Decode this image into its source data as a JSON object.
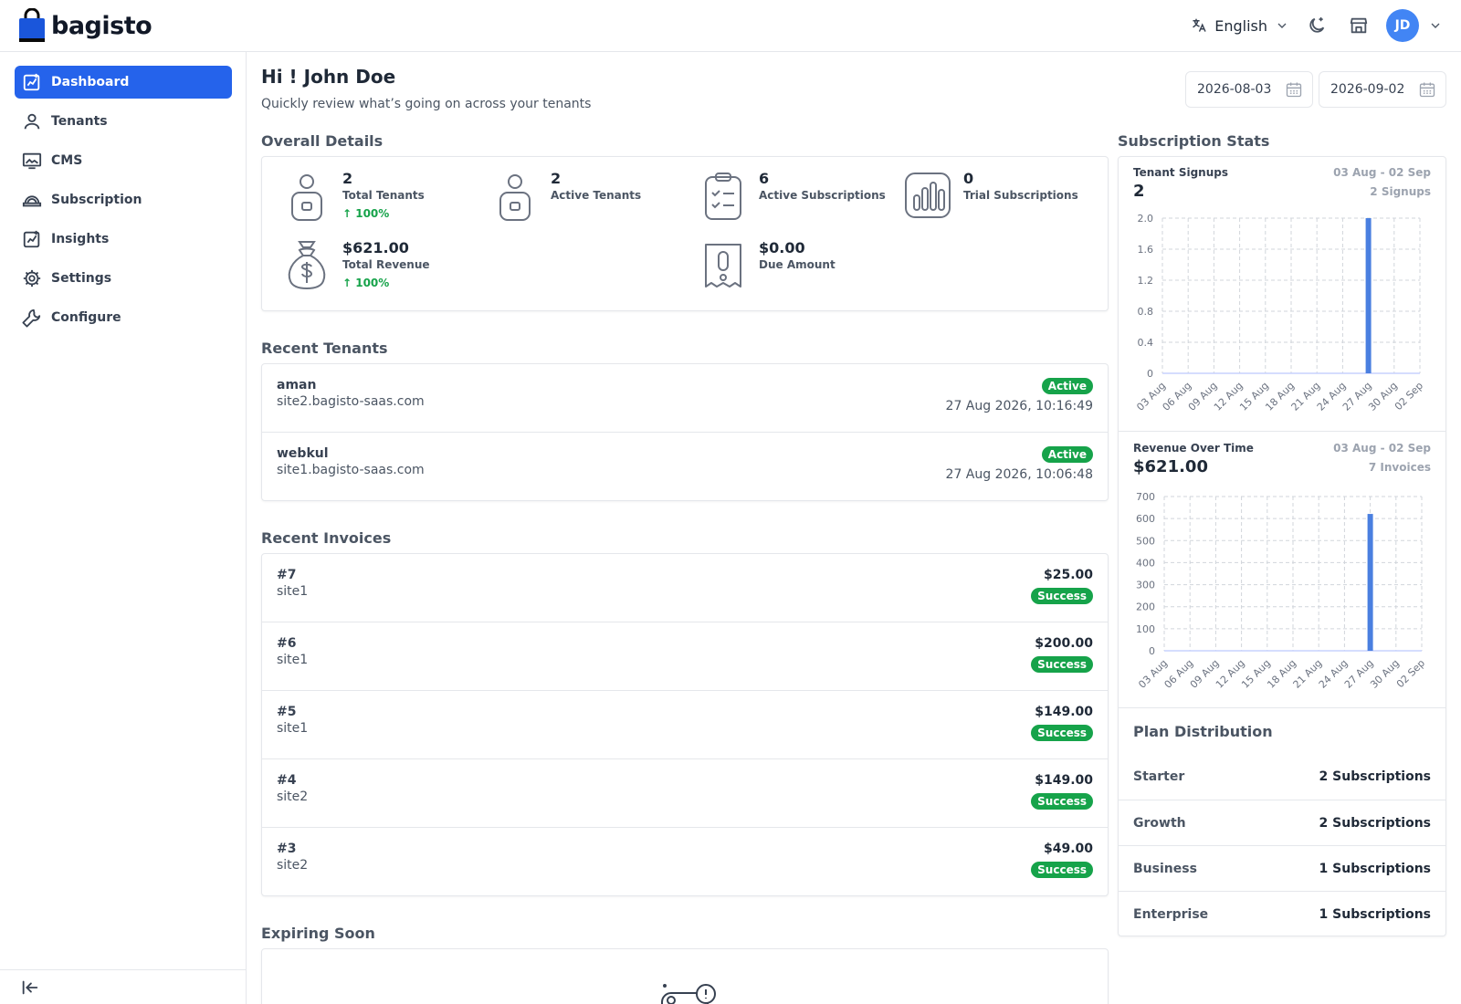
{
  "header": {
    "logo_text": "bagisto",
    "language": "English",
    "avatar_initials": "JD",
    "accent": "#2563eb"
  },
  "sidebar": {
    "items": [
      {
        "label": "Dashboard",
        "icon": "dashboard-icon",
        "active": true
      },
      {
        "label": "Tenants",
        "icon": "user-icon"
      },
      {
        "label": "CMS",
        "icon": "monitor-icon"
      },
      {
        "label": "Subscription",
        "icon": "subscription-icon"
      },
      {
        "label": "Insights",
        "icon": "insights-icon"
      },
      {
        "label": "Settings",
        "icon": "gear-icon"
      },
      {
        "label": "Configure",
        "icon": "wrench-icon"
      }
    ]
  },
  "main": {
    "greeting": "Hi ! John Doe",
    "subtitle": "Quickly review what’s going on across your tenants",
    "date_from": "2026-08-03",
    "date_to": "2026-09-02",
    "overall_title": "Overall Details",
    "stats": [
      {
        "value": "2",
        "label": "Total Tenants",
        "change": "100%"
      },
      {
        "value": "2",
        "label": "Active Tenants"
      },
      {
        "value": "6",
        "label": "Active Subscriptions"
      },
      {
        "value": "0",
        "label": "Trial Subscriptions"
      },
      {
        "value": "$621.00",
        "label": "Total Revenue",
        "change": "100%"
      },
      {
        "value": "$0.00",
        "label": "Due Amount"
      }
    ],
    "recent_tenants_title": "Recent Tenants",
    "recent_tenants": [
      {
        "name": "aman",
        "domain": "site2.bagisto-saas.com",
        "status": "Active",
        "date": "27 Aug 2026, 10:16:49"
      },
      {
        "name": "webkul",
        "domain": "site1.bagisto-saas.com",
        "status": "Active",
        "date": "27 Aug 2026, 10:06:48"
      }
    ],
    "recent_invoices_title": "Recent Invoices",
    "recent_invoices": [
      {
        "id": "#7",
        "site": "site1",
        "amount": "$25.00",
        "status": "Success"
      },
      {
        "id": "#6",
        "site": "site1",
        "amount": "$200.00",
        "status": "Success"
      },
      {
        "id": "#5",
        "site": "site1",
        "amount": "$149.00",
        "status": "Success"
      },
      {
        "id": "#4",
        "site": "site2",
        "amount": "$149.00",
        "status": "Success"
      },
      {
        "id": "#3",
        "site": "site2",
        "amount": "$49.00",
        "status": "Success"
      }
    ],
    "expiring_title": "Expiring Soon"
  },
  "subscription_stats": {
    "title": "Subscription Stats",
    "signups": {
      "label": "Tenant Signups",
      "value": "2",
      "range": "03 Aug - 02 Sep",
      "count": "2 Signups"
    },
    "revenue": {
      "label": "Revenue Over Time",
      "value": "$621.00",
      "range": "03 Aug - 02 Sep",
      "count": "7 Invoices"
    },
    "plan_title": "Plan Distribution",
    "plans": [
      {
        "name": "Starter",
        "count": "2 Subscriptions"
      },
      {
        "name": "Growth",
        "count": "2 Subscriptions"
      },
      {
        "name": "Business",
        "count": "1 Subscriptions"
      },
      {
        "name": "Enterprise",
        "count": "1 Subscriptions"
      }
    ]
  },
  "chart_data": [
    {
      "type": "bar",
      "categories": [
        "03 Aug",
        "06 Aug",
        "09 Aug",
        "12 Aug",
        "15 Aug",
        "18 Aug",
        "21 Aug",
        "24 Aug",
        "27 Aug",
        "30 Aug",
        "02 Sep"
      ],
      "values": [
        0,
        0,
        0,
        0,
        0,
        0,
        0,
        0,
        2,
        0,
        0
      ],
      "yticks": [
        "0",
        "0.4",
        "0.8",
        "1.2",
        "1.6",
        "2.0"
      ],
      "ylim": [
        0,
        2
      ],
      "color": "#4a7fe0",
      "grid": true
    },
    {
      "type": "bar",
      "categories": [
        "03 Aug",
        "06 Aug",
        "09 Aug",
        "12 Aug",
        "15 Aug",
        "18 Aug",
        "21 Aug",
        "24 Aug",
        "27 Aug",
        "30 Aug",
        "02 Sep"
      ],
      "values": [
        0,
        0,
        0,
        0,
        0,
        0,
        0,
        0,
        621,
        0,
        0
      ],
      "yticks": [
        "0",
        "100",
        "200",
        "300",
        "400",
        "500",
        "600",
        "700"
      ],
      "ylim": [
        0,
        700
      ],
      "color": "#4a7fe0",
      "grid": true
    }
  ]
}
